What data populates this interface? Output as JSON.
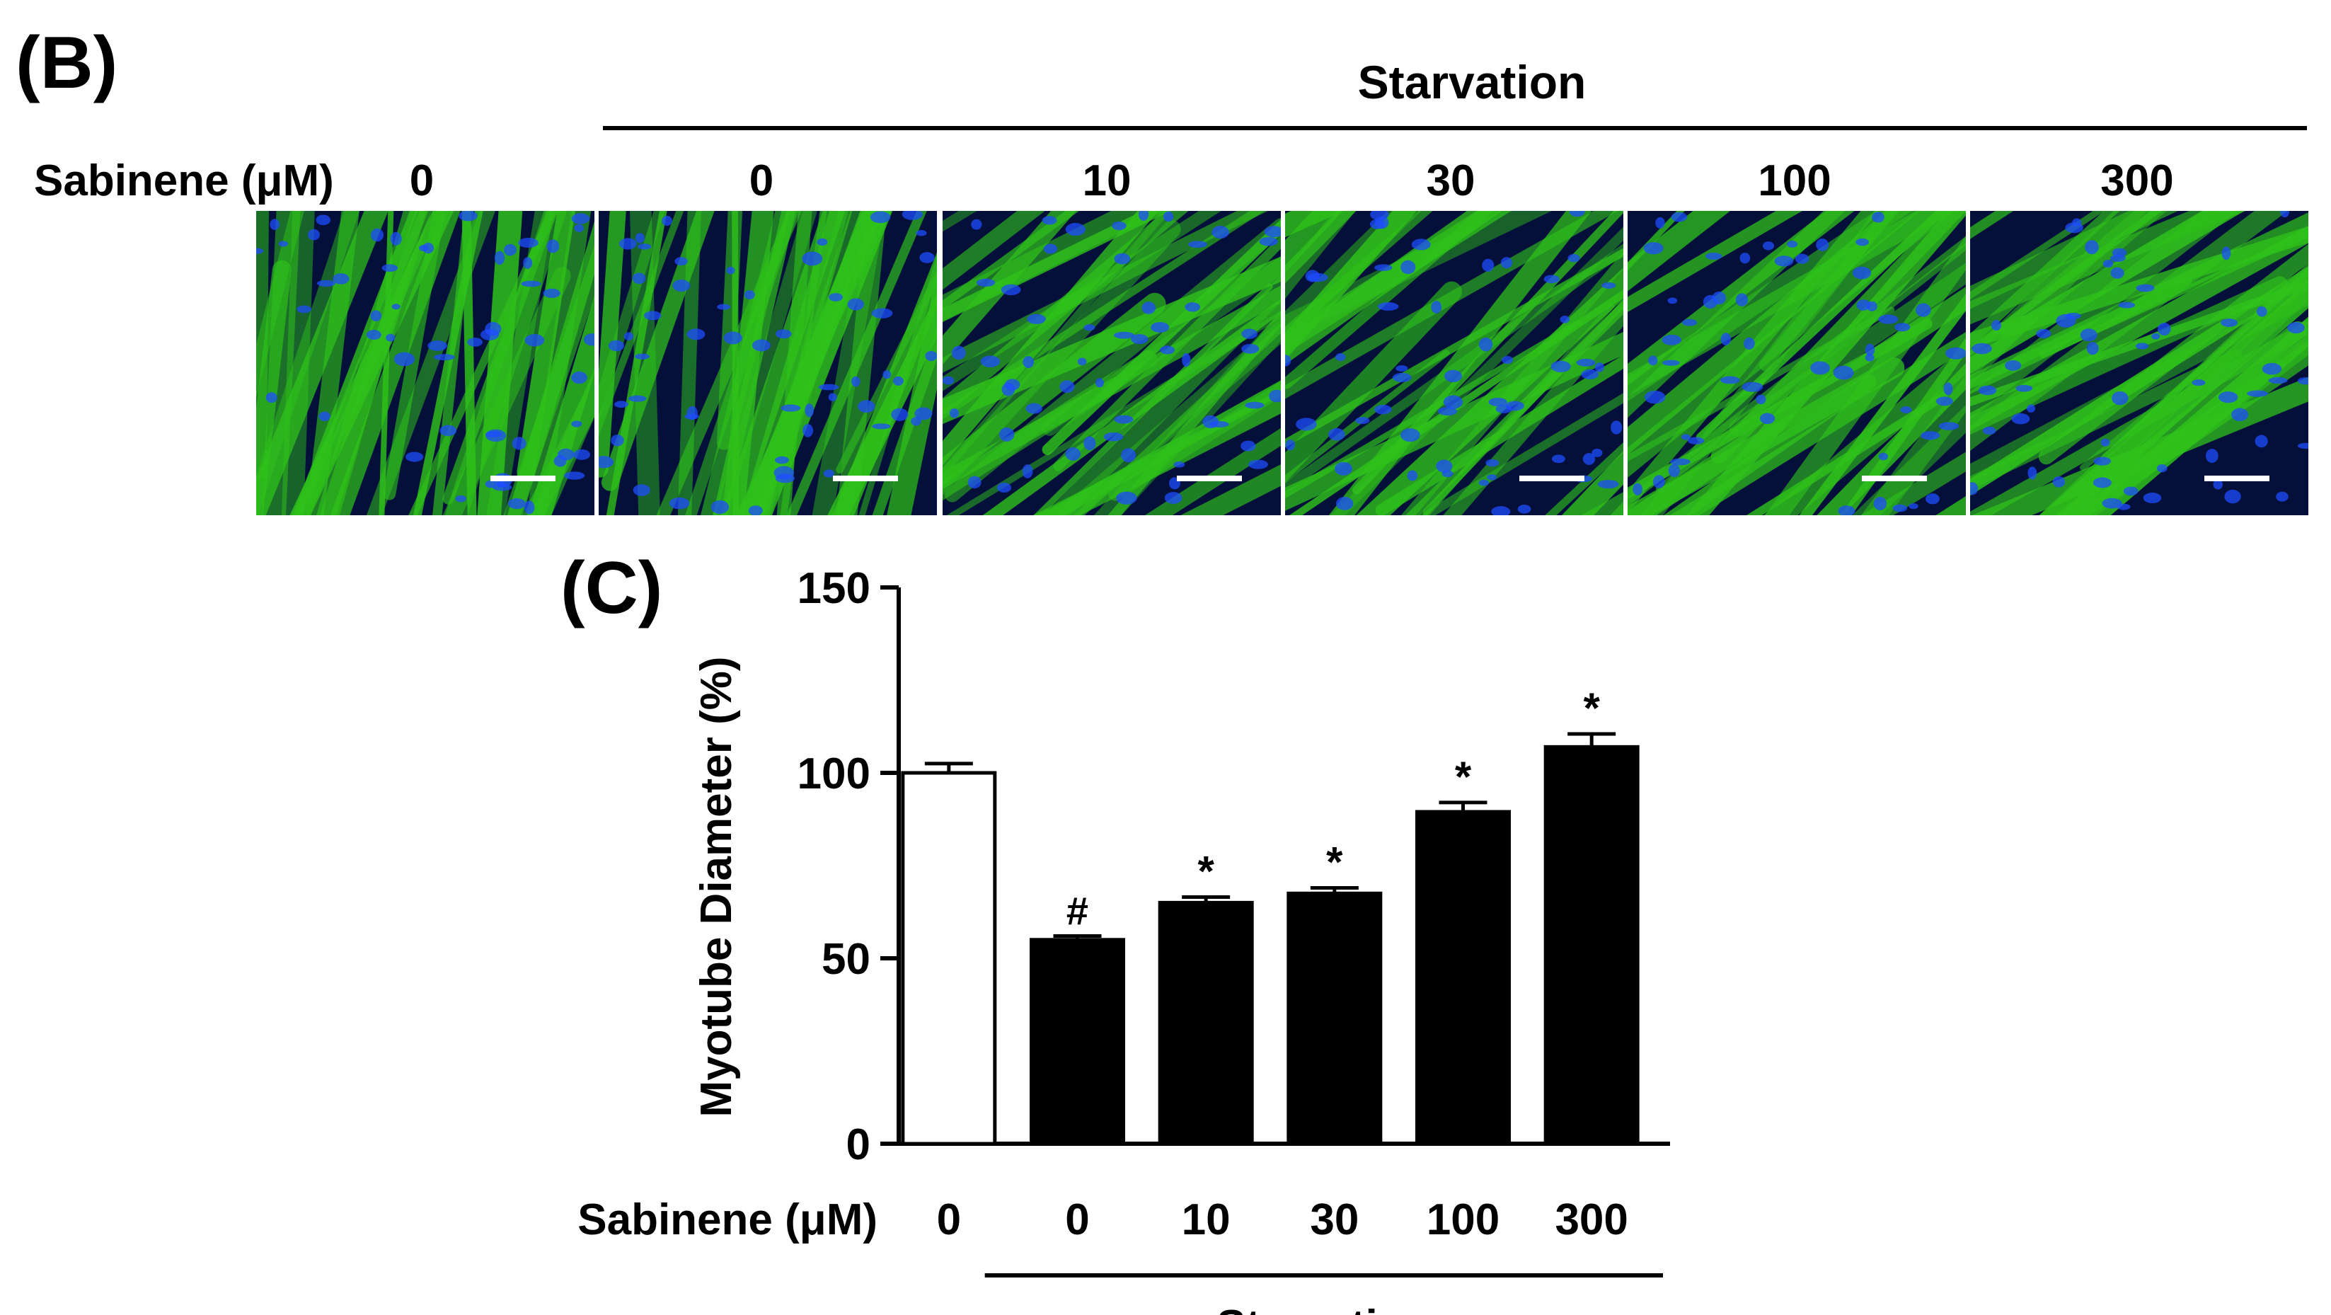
{
  "panel_b": {
    "label": "(B)",
    "group_label": "Starvation",
    "concentration_axis_label": "Sabinene (μM)",
    "concentrations": [
      "0",
      "0",
      "10",
      "30",
      "100",
      "300"
    ],
    "micrograph_colors": {
      "background": "#05103a",
      "myotube": "#2fc21a",
      "nucleus": "#1e4cff",
      "scale_bar": "#ffffff"
    }
  },
  "panel_c": {
    "label": "(C)",
    "chart_data": {
      "type": "bar",
      "categories": [
        "0",
        "0",
        "10",
        "30",
        "100",
        "300"
      ],
      "values": [
        100,
        55,
        65,
        67.5,
        89.5,
        107
      ],
      "errors": [
        2.5,
        1,
        1.5,
        1.5,
        2.5,
        3.5
      ],
      "significance": [
        "",
        "#",
        "*",
        "*",
        "*",
        "*"
      ],
      "bar_fill": [
        "#ffffff",
        "#000000",
        "#000000",
        "#000000",
        "#000000",
        "#000000"
      ],
      "ylabel": "Myotube Diameter (%)",
      "xlabel": "Sabinene (μM)",
      "ylim": [
        0,
        150
      ],
      "yticks": [
        0,
        50,
        100,
        150
      ],
      "group_label": "Starvation",
      "grid": false
    }
  }
}
